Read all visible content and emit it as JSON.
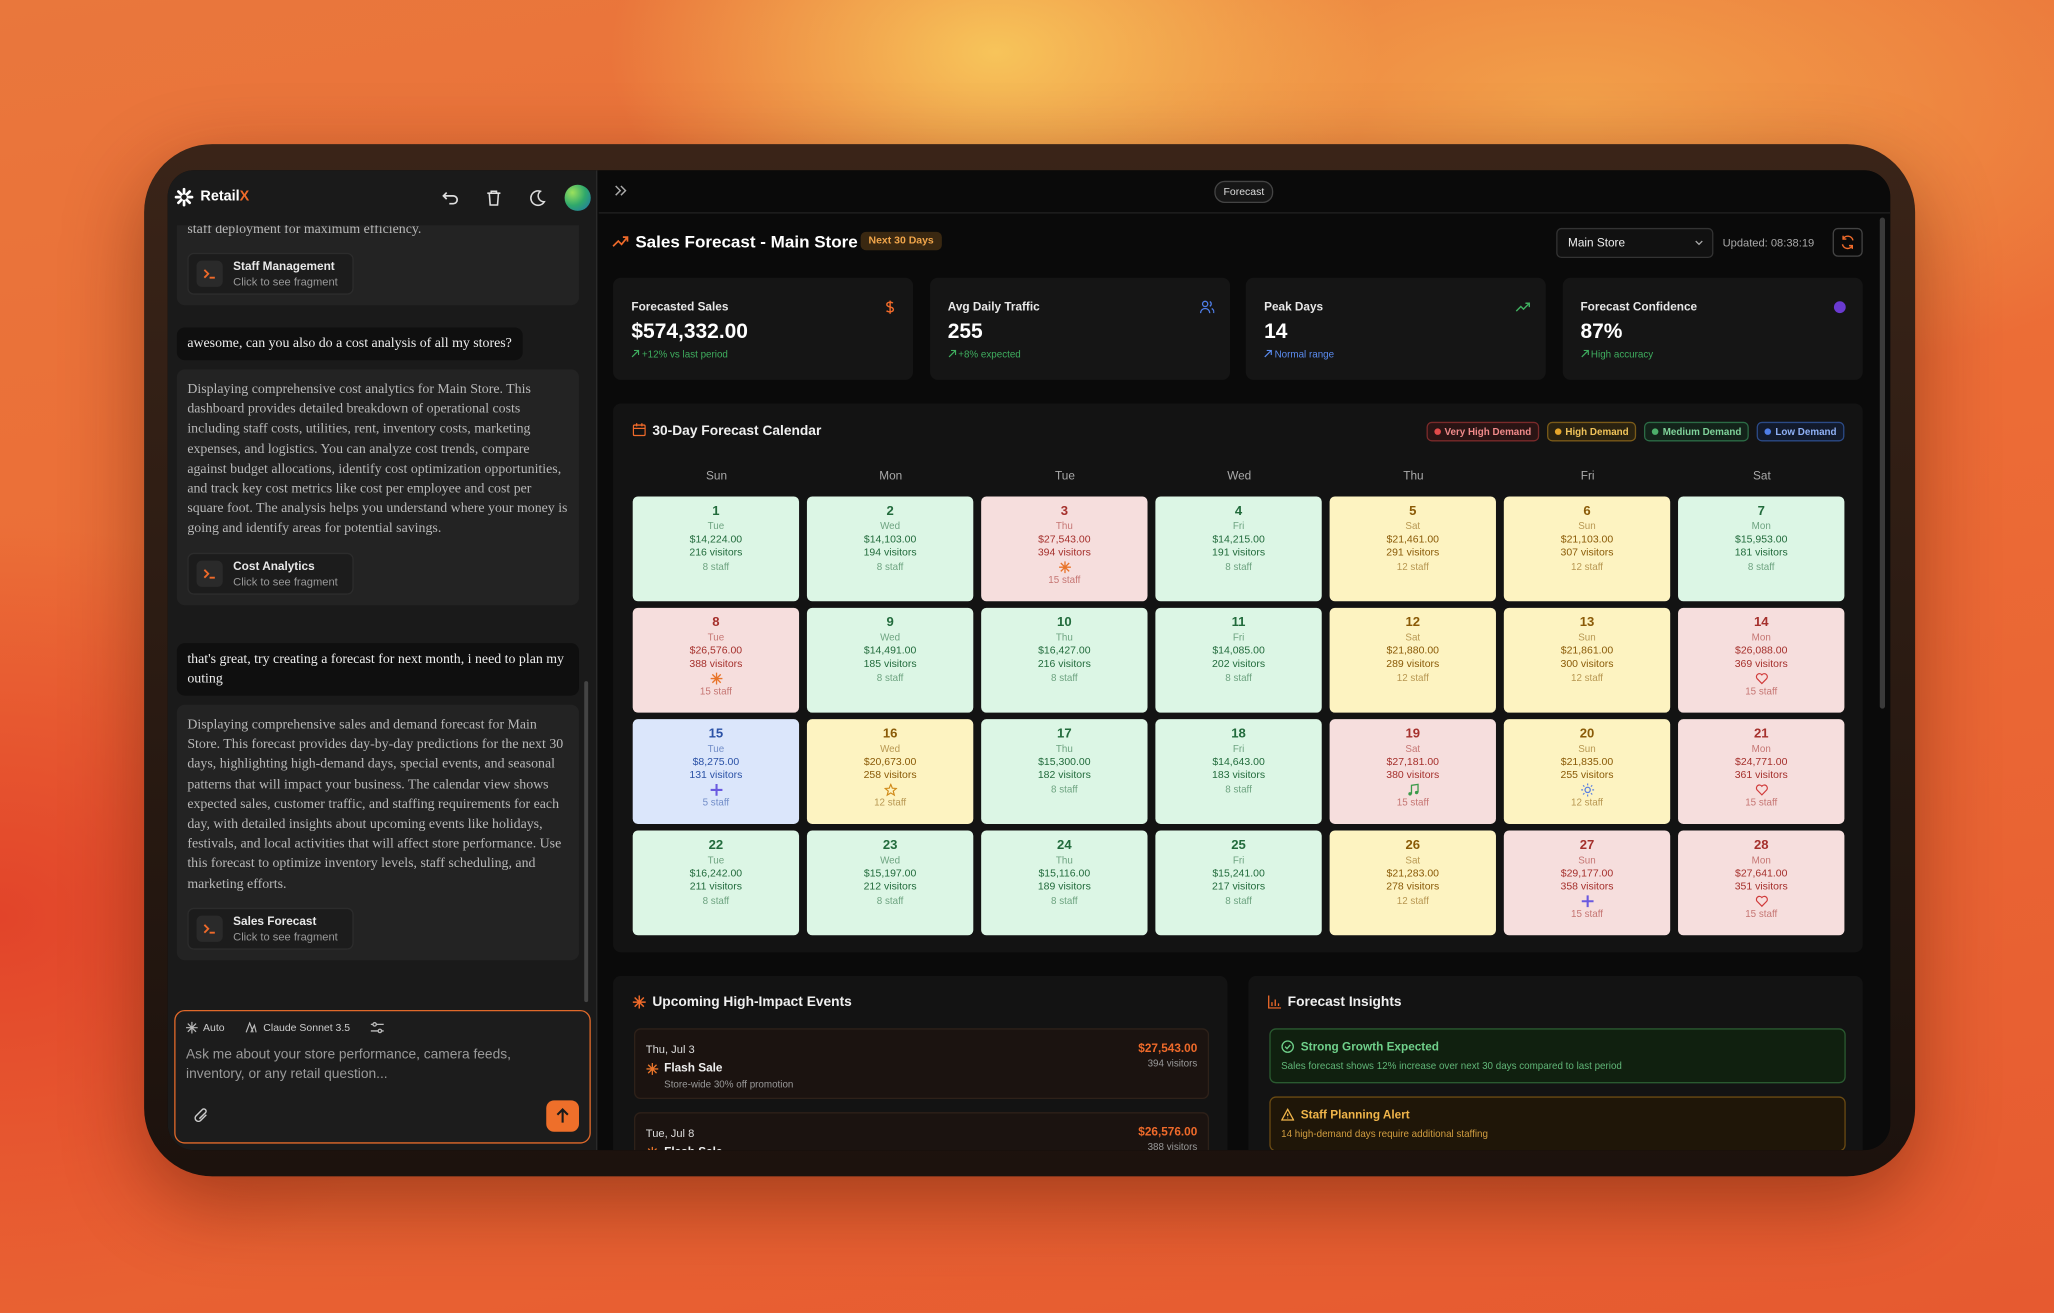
{
  "sidebar": {
    "brand": "Retail",
    "brand_accent": "X"
  },
  "chat": {
    "intro_tail": "staff deployment for maximum efficiency.",
    "fragment_1": {
      "title": "Staff Management",
      "hint": "Click to see fragment"
    },
    "user_1": "awesome, can you also do a cost analysis of all my stores?",
    "reply_1": "Displaying comprehensive cost analytics for Main Store. This dashboard provides detailed breakdown of operational costs including staff costs, utilities, rent, inventory costs, marketing expenses, and logistics. You can analyze cost trends, compare against budget allocations, identify cost optimization opportunities, and track key cost metrics like cost per employee and cost per square foot. The analysis helps you understand where your money is going and identify areas for potential savings.",
    "fragment_2": {
      "title": "Cost Analytics",
      "hint": "Click to see fragment"
    },
    "user_2": "that's great, try creating a forecast for next month,  i need to plan my outing",
    "reply_2": "Displaying comprehensive sales and demand forecast for Main Store. This forecast provides day-by-day predictions for the next 30 days, highlighting high-demand days, special events, and seasonal patterns that will impact your business. The calendar view shows expected sales, customer traffic, and staffing requirements for each day, with detailed insights about upcoming events like holidays, festivals, and local activities that will affect store performance. Use this forecast to optimize inventory levels, staff scheduling, and marketing efforts.",
    "fragment_3": {
      "title": "Sales Forecast",
      "hint": "Click to see fragment"
    }
  },
  "composer": {
    "mode": "Auto",
    "model": "Claude Sonnet 3.5",
    "placeholder": "Ask me about your store performance, camera feeds, inventory, or any retail question..."
  },
  "dashboard": {
    "tab": "Forecast",
    "title": "Sales Forecast - Main Store",
    "badge": "Next 30 Days",
    "store": "Main Store",
    "updated": "Updated: 08:38:19"
  },
  "stats": [
    {
      "label": "Forecasted Sales",
      "value": "$574,332.00",
      "note": "+12% vs last period",
      "tone": "green"
    },
    {
      "label": "Avg Daily Traffic",
      "value": "255",
      "note": "+8% expected",
      "tone": "green"
    },
    {
      "label": "Peak Days",
      "value": "14",
      "note": "Normal range",
      "tone": "blue"
    },
    {
      "label": "Forecast Confidence",
      "value": "87%",
      "note": "High accuracy",
      "tone": "green"
    }
  ],
  "calendar": {
    "title": "30-Day Forecast Calendar",
    "legend": [
      {
        "label": "Very High Demand",
        "tone": "red"
      },
      {
        "label": "High Demand",
        "tone": "yellow"
      },
      {
        "label": "Medium Demand",
        "tone": "green"
      },
      {
        "label": "Low Demand",
        "tone": "blue"
      }
    ],
    "weekdays": [
      "Sun",
      "Mon",
      "Tue",
      "Wed",
      "Thu",
      "Fri",
      "Sat"
    ],
    "days": [
      {
        "day": 1,
        "weekday": "Tue",
        "sales": "$14,224.00",
        "visitors": "216 visitors",
        "staff": "8 staff",
        "tone": "green"
      },
      {
        "day": 2,
        "weekday": "Wed",
        "sales": "$14,103.00",
        "visitors": "194 visitors",
        "staff": "8 staff",
        "tone": "green"
      },
      {
        "day": 3,
        "weekday": "Thu",
        "sales": "$27,543.00",
        "visitors": "394 visitors",
        "staff": "15 staff",
        "tone": "red",
        "icon": "zap"
      },
      {
        "day": 4,
        "weekday": "Fri",
        "sales": "$14,215.00",
        "visitors": "191 visitors",
        "staff": "8 staff",
        "tone": "green"
      },
      {
        "day": 5,
        "weekday": "Sat",
        "sales": "$21,461.00",
        "visitors": "291 visitors",
        "staff": "12 staff",
        "tone": "yellow"
      },
      {
        "day": 6,
        "weekday": "Sun",
        "sales": "$21,103.00",
        "visitors": "307 visitors",
        "staff": "12 staff",
        "tone": "yellow"
      },
      {
        "day": 7,
        "weekday": "Mon",
        "sales": "$15,953.00",
        "visitors": "181 visitors",
        "staff": "8 staff",
        "tone": "green"
      },
      {
        "day": 8,
        "weekday": "Tue",
        "sales": "$26,576.00",
        "visitors": "388 visitors",
        "staff": "15 staff",
        "tone": "red",
        "icon": "zap"
      },
      {
        "day": 9,
        "weekday": "Wed",
        "sales": "$14,491.00",
        "visitors": "185 visitors",
        "staff": "8 staff",
        "tone": "green"
      },
      {
        "day": 10,
        "weekday": "Thu",
        "sales": "$16,427.00",
        "visitors": "216 visitors",
        "staff": "8 staff",
        "tone": "green"
      },
      {
        "day": 11,
        "weekday": "Fri",
        "sales": "$14,085.00",
        "visitors": "202 visitors",
        "staff": "8 staff",
        "tone": "green"
      },
      {
        "day": 12,
        "weekday": "Sat",
        "sales": "$21,880.00",
        "visitors": "289 visitors",
        "staff": "12 staff",
        "tone": "yellow"
      },
      {
        "day": 13,
        "weekday": "Sun",
        "sales": "$21,861.00",
        "visitors": "300 visitors",
        "staff": "12 staff",
        "tone": "yellow"
      },
      {
        "day": 14,
        "weekday": "Mon",
        "sales": "$26,088.00",
        "visitors": "369 visitors",
        "staff": "15 staff",
        "tone": "red",
        "icon": "heart"
      },
      {
        "day": 15,
        "weekday": "Tue",
        "sales": "$8,275.00",
        "visitors": "131 visitors",
        "staff": "5 staff",
        "tone": "blue",
        "icon": "plus"
      },
      {
        "day": 16,
        "weekday": "Wed",
        "sales": "$20,673.00",
        "visitors": "258 visitors",
        "staff": "12 staff",
        "tone": "yellow",
        "icon": "star"
      },
      {
        "day": 17,
        "weekday": "Thu",
        "sales": "$15,300.00",
        "visitors": "182 visitors",
        "staff": "8 staff",
        "tone": "green"
      },
      {
        "day": 18,
        "weekday": "Fri",
        "sales": "$14,643.00",
        "visitors": "183 visitors",
        "staff": "8 staff",
        "tone": "green"
      },
      {
        "day": 19,
        "weekday": "Sat",
        "sales": "$27,181.00",
        "visitors": "380 visitors",
        "staff": "15 staff",
        "tone": "red",
        "icon": "music"
      },
      {
        "day": 20,
        "weekday": "Sun",
        "sales": "$21,835.00",
        "visitors": "255 visitors",
        "staff": "12 staff",
        "tone": "yellow",
        "icon": "sun"
      },
      {
        "day": 21,
        "weekday": "Mon",
        "sales": "$24,771.00",
        "visitors": "361 visitors",
        "staff": "15 staff",
        "tone": "red",
        "icon": "heart"
      },
      {
        "day": 22,
        "weekday": "Tue",
        "sales": "$16,242.00",
        "visitors": "211 visitors",
        "staff": "8 staff",
        "tone": "green"
      },
      {
        "day": 23,
        "weekday": "Wed",
        "sales": "$15,197.00",
        "visitors": "212 visitors",
        "staff": "8 staff",
        "tone": "green"
      },
      {
        "day": 24,
        "weekday": "Thu",
        "sales": "$15,116.00",
        "visitors": "189 visitors",
        "staff": "8 staff",
        "tone": "green"
      },
      {
        "day": 25,
        "weekday": "Fri",
        "sales": "$15,241.00",
        "visitors": "217 visitors",
        "staff": "8 staff",
        "tone": "green"
      },
      {
        "day": 26,
        "weekday": "Sat",
        "sales": "$21,283.00",
        "visitors": "278 visitors",
        "staff": "12 staff",
        "tone": "yellow"
      },
      {
        "day": 27,
        "weekday": "Sun",
        "sales": "$29,177.00",
        "visitors": "358 visitors",
        "staff": "15 staff",
        "tone": "red",
        "icon": "plus"
      },
      {
        "day": 28,
        "weekday": "Mon",
        "sales": "$27,641.00",
        "visitors": "351 visitors",
        "staff": "15 staff",
        "tone": "red",
        "icon": "heart"
      }
    ]
  },
  "events": {
    "title": "Upcoming High-Impact Events",
    "items": [
      {
        "date": "Thu, Jul 3",
        "name": "Flash Sale",
        "detail": "Store-wide 30% off promotion",
        "sales": "$27,543.00",
        "visitors": "394 visitors"
      },
      {
        "date": "Tue, Jul 8",
        "name": "Flash Sale",
        "sales": "$26,576.00",
        "visitors": "388 visitors"
      }
    ]
  },
  "insights": {
    "title": "Forecast Insights",
    "items": [
      {
        "title": "Strong Growth Expected",
        "text": "Sales forecast shows 12% increase over next 30 days compared to last period",
        "tone": "green"
      },
      {
        "title": "Staff Planning Alert",
        "text": "14 high-demand days require additional staffing",
        "tone": "amber"
      }
    ]
  }
}
